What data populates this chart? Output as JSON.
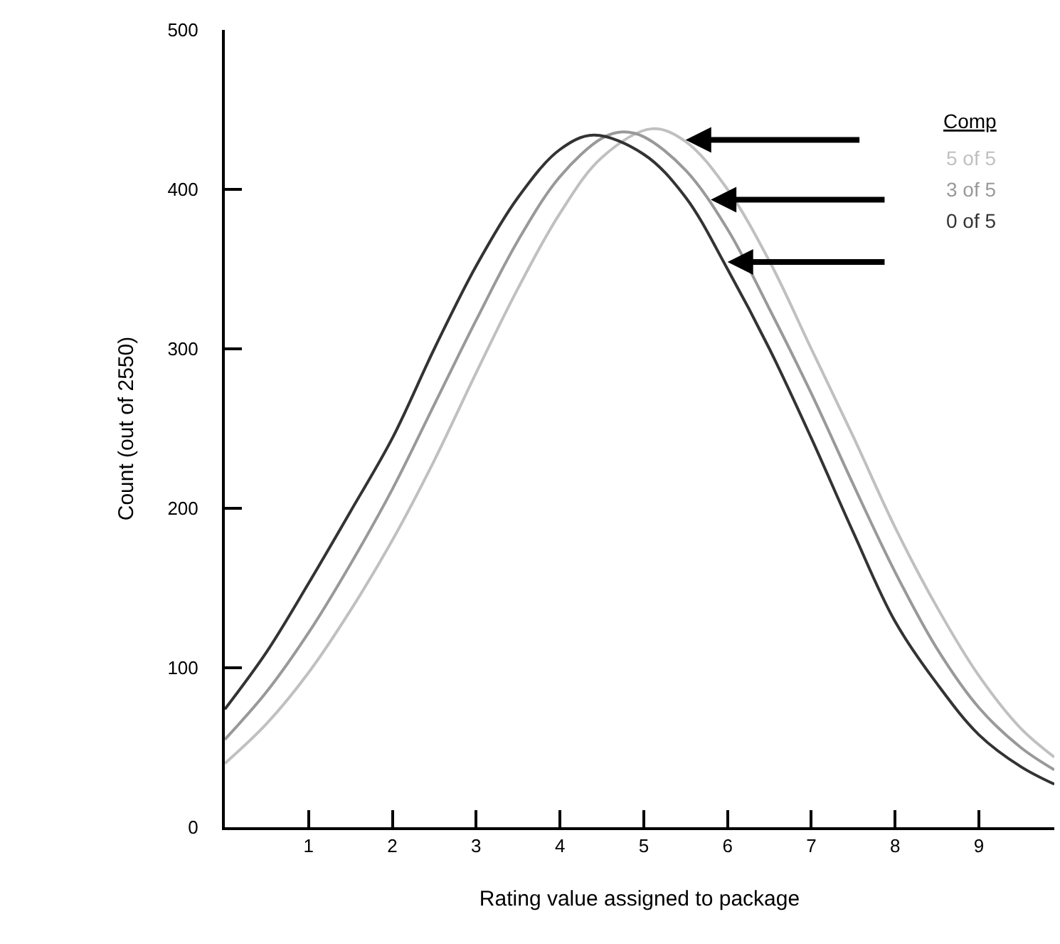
{
  "chart_data": {
    "type": "line",
    "xlabel": "Rating value assigned to package",
    "ylabel": "Count (out of 2550)",
    "legend_title": "Comp",
    "legend": false,
    "marker": "none",
    "line_style": "solid",
    "xlim": [
      0,
      9.9
    ],
    "xticks": [
      1,
      2,
      3,
      4,
      5,
      6,
      7,
      8,
      9
    ],
    "ylim": [
      0,
      500
    ],
    "yticks": [
      0,
      100,
      200,
      300,
      400,
      500
    ],
    "series": [
      {
        "name": "5 of 5",
        "color": "#c0c0c0",
        "x": [
          0,
          0.5,
          1,
          1.5,
          2,
          2.5,
          3,
          3.5,
          4,
          4.5,
          5.1,
          5.5,
          6,
          6.5,
          7,
          7.5,
          8,
          8.5,
          9,
          9.5,
          9.9
        ],
        "values": [
          40,
          65,
          97,
          136,
          180,
          230,
          285,
          338,
          385,
          420,
          438,
          430,
          400,
          355,
          300,
          245,
          188,
          138,
          95,
          62,
          44
        ]
      },
      {
        "name": "3 of 5",
        "color": "#999999",
        "x": [
          0,
          0.5,
          1,
          1.5,
          2,
          2.5,
          3,
          3.5,
          4,
          4.5,
          4.75,
          5,
          5.5,
          6,
          6.5,
          7,
          7.5,
          8,
          8.5,
          9,
          9.5,
          9.9
        ],
        "values": [
          55,
          85,
          122,
          165,
          212,
          265,
          318,
          368,
          408,
          432,
          436,
          433,
          412,
          375,
          325,
          272,
          215,
          160,
          112,
          75,
          50,
          36
        ]
      },
      {
        "name": "0 of 5",
        "color": "#333333",
        "x": [
          0,
          0.5,
          1,
          1.5,
          2,
          2.5,
          3,
          3.5,
          4,
          4.4,
          5,
          5.5,
          6,
          6.5,
          7,
          7.5,
          8,
          8.5,
          9,
          9.5,
          9.9
        ],
        "values": [
          74,
          110,
          153,
          198,
          244,
          300,
          352,
          395,
          425,
          434,
          422,
          395,
          350,
          300,
          244,
          185,
          129,
          90,
          58,
          38,
          27
        ]
      }
    ]
  }
}
